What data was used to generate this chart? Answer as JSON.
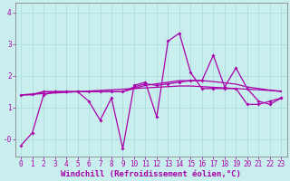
{
  "xlabel": "Windchill (Refroidissement éolien,°C)",
  "background_color": "#c8eeee",
  "grid_color": "#a8dada",
  "line_color": "#aa00aa",
  "x": [
    0,
    1,
    2,
    3,
    4,
    5,
    6,
    7,
    8,
    9,
    10,
    11,
    12,
    13,
    14,
    15,
    16,
    17,
    18,
    19,
    20,
    21,
    22,
    23
  ],
  "series1": [
    -0.2,
    0.2,
    1.4,
    1.5,
    1.5,
    1.5,
    1.2,
    0.6,
    1.3,
    -0.3,
    1.7,
    1.8,
    0.7,
    3.1,
    3.35,
    2.1,
    1.6,
    1.6,
    1.6,
    1.6,
    1.1,
    1.1,
    1.2,
    1.3
  ],
  "series2": [
    1.4,
    1.4,
    1.5,
    1.5,
    1.5,
    1.5,
    1.5,
    1.5,
    1.5,
    1.5,
    1.6,
    1.7,
    1.75,
    1.8,
    1.85,
    1.85,
    1.85,
    1.82,
    1.78,
    1.74,
    1.65,
    1.6,
    1.55,
    1.5
  ],
  "series3": [
    1.4,
    1.42,
    1.44,
    1.46,
    1.48,
    1.5,
    1.52,
    1.54,
    1.56,
    1.58,
    1.6,
    1.62,
    1.64,
    1.66,
    1.68,
    1.68,
    1.66,
    1.64,
    1.62,
    1.6,
    1.58,
    1.56,
    1.54,
    1.52
  ],
  "series4": [
    1.4,
    1.42,
    1.5,
    1.5,
    1.5,
    1.5,
    1.5,
    1.5,
    1.5,
    1.5,
    1.65,
    1.75,
    1.7,
    1.75,
    1.8,
    1.85,
    1.85,
    2.65,
    1.65,
    2.25,
    1.6,
    1.2,
    1.1,
    1.3
  ],
  "ylim": [
    -0.55,
    4.3
  ],
  "yticks": [
    0,
    1,
    2,
    3,
    4
  ],
  "ytick_labels": [
    "-0",
    "1",
    "2",
    "3",
    "4"
  ],
  "xlabel_fontsize": 6.5,
  "tick_fontsize": 5.5
}
